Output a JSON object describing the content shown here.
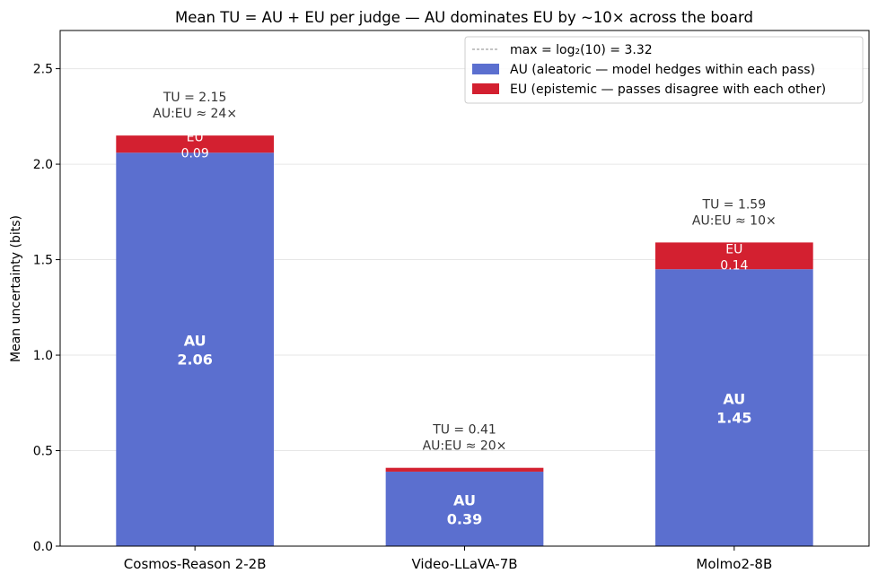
{
  "chart_data": {
    "type": "bar",
    "stacked": true,
    "title": "Mean TU = AU + EU per judge — AU dominates EU by ~10× across the board",
    "xlabel": "",
    "ylabel": "Mean uncertainty (bits)",
    "ylim": [
      0,
      2.7
    ],
    "yticks": [
      "0.0",
      "0.5",
      "1.0",
      "1.5",
      "2.0",
      "2.5"
    ],
    "grid": "y",
    "legend_position": "top-right",
    "categories": [
      "Cosmos-Reason 2-2B",
      "Video-LLaVA-7B",
      "Molmo2-8B"
    ],
    "series": [
      {
        "name": "AU (aleatoric — model hedges within each pass)",
        "short": "AU",
        "color": "#5b6fcf",
        "values": [
          2.06,
          0.39,
          1.45
        ],
        "labels": [
          "2.06",
          "0.39",
          "1.45"
        ]
      },
      {
        "name": "EU (epistemic — passes disagree with each other)",
        "short": "EU",
        "color": "#d32030",
        "values": [
          0.09,
          0.02,
          0.14
        ],
        "labels": [
          "0.09",
          "",
          "0.14"
        ]
      }
    ],
    "totals": [
      "TU = 2.15",
      "TU = 0.41",
      "TU = 1.59"
    ],
    "ratios": [
      "AU:EU ≈ 24×",
      "AU:EU ≈ 20×",
      "AU:EU ≈ 10×"
    ],
    "reference_line": {
      "label": "max = log₂(10) = 3.32",
      "value": 3.32
    }
  }
}
